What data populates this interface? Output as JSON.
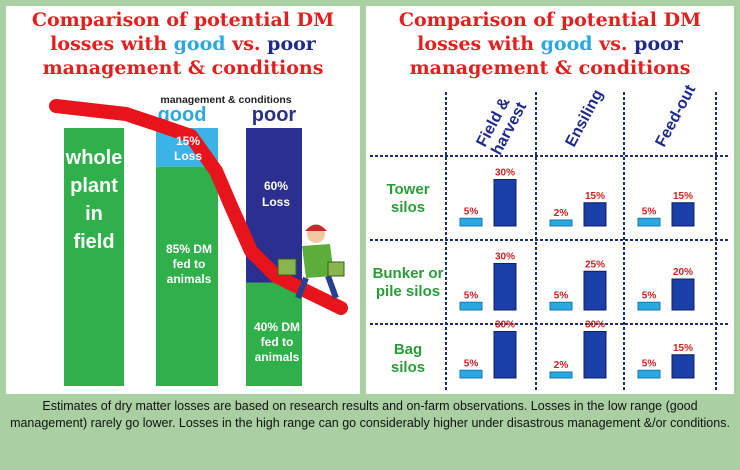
{
  "left": {
    "title_l1": "Comparison of potential DM",
    "title_l2a": "losses with ",
    "title_good": "good",
    "title_l2b": " vs. ",
    "title_poor": "poor",
    "title_l3": "management & conditions",
    "subheader": "management & conditions",
    "good_label": "good",
    "poor_label": "poor",
    "whole_plant": "whole plant in field",
    "good_loss": "15% Loss",
    "good_fed": "85% DM fed to animals",
    "poor_loss": "60% Loss",
    "poor_fed": "40% DM fed to animals",
    "colors": {
      "green": "#2fb04a",
      "light_blue": "#3ab4e6",
      "navy": "#2b2f8f",
      "red": "#e8141c"
    }
  },
  "right": {
    "title_l1": "Comparison of potential DM",
    "title_l2a": "losses with ",
    "title_good": "good",
    "title_l2b": " vs. ",
    "title_poor": "poor",
    "title_l3": "management & conditions",
    "stages": [
      "Field & harvest",
      "Ensiling",
      "Feed-out"
    ],
    "silos": [
      "Tower silos",
      "Bunker or pile silos",
      "Bag silos"
    ]
  },
  "chart_data": [
    {
      "type": "bar",
      "categories": [
        "whole plant in field",
        "good",
        "poor"
      ],
      "series": [
        {
          "name": "fed to animals",
          "values": [
            100,
            85,
            40
          ]
        },
        {
          "name": "Loss",
          "values": [
            0,
            15,
            60
          ]
        }
      ]
    },
    {
      "type": "bar",
      "categories": [
        "Field & harvest",
        "Ensiling",
        "Feed-out"
      ],
      "groups": [
        {
          "name": "Tower silos",
          "good": [
            5,
            2,
            5
          ],
          "poor": [
            30,
            15,
            15
          ]
        },
        {
          "name": "Bunker or pile silos",
          "good": [
            5,
            5,
            5
          ],
          "poor": [
            30,
            25,
            20
          ]
        },
        {
          "name": "Bag silos",
          "good": [
            5,
            2,
            5
          ],
          "poor": [
            30,
            30,
            15
          ]
        }
      ],
      "unit": "%"
    }
  ],
  "caption": "Estimates of dry matter losses are based on research results and on-farm observations. Losses in the low range (good management) rarely go lower. Losses in the high range can go considerably higher under disastrous management &/or conditions."
}
